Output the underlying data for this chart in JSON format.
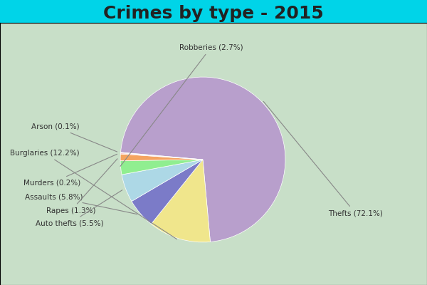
{
  "title": "Crimes by type - 2015",
  "title_fontsize": 18,
  "title_fontweight": "bold",
  "labels": [
    "Thefts",
    "Burglaries",
    "Assaults",
    "Auto thefts",
    "Robberies",
    "Rapes",
    "Murders",
    "Arson"
  ],
  "values": [
    72.1,
    12.2,
    5.8,
    5.5,
    2.7,
    1.3,
    0.2,
    0.1
  ],
  "colors": [
    "#b89fcc",
    "#f0e68c",
    "#7b7bc8",
    "#add8e6",
    "#90ee90",
    "#f4a460",
    "#ffb6c1",
    "#d3d3d3"
  ],
  "background_top": "#00d4e8",
  "background_main": "#c8dfc8",
  "label_colors": {
    "Thefts": "#555555",
    "Burglaries": "#555555",
    "Assaults": "#555555",
    "Auto thefts": "#555555",
    "Robberies": "#555555",
    "Rapes": "#555555",
    "Murders": "#555555",
    "Arson": "#555555"
  },
  "figsize": [
    6.0,
    4.0
  ],
  "dpi": 100
}
